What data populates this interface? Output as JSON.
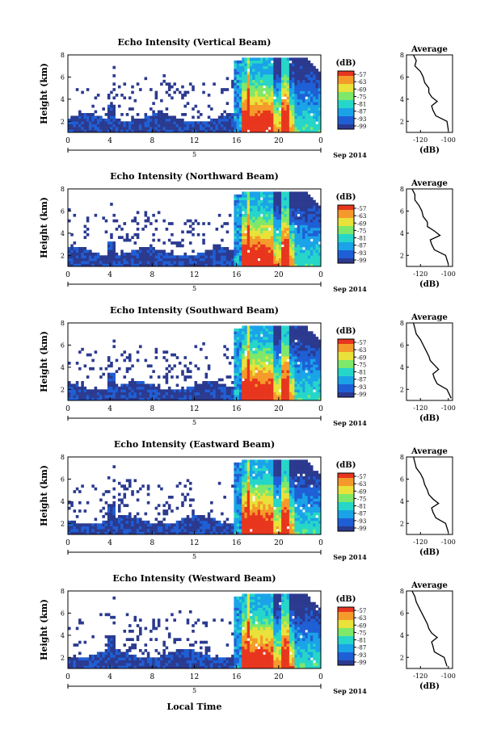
{
  "figure": {
    "xlabel": "Local Time",
    "date_label": "Sep 2014",
    "day_label": "5"
  },
  "colorbar": {
    "unit": "(dB)",
    "ticks": [
      "-57",
      "-63",
      "-69",
      "-75",
      "-81",
      "-87",
      "-93",
      "-99"
    ],
    "colors": [
      "#2b3a8f",
      "#1f5fd6",
      "#1aa3e8",
      "#26d6c8",
      "#7ee86a",
      "#e8e23a",
      "#f59a2a",
      "#e8361e"
    ]
  },
  "chart_data": [
    {
      "type": "heatmap",
      "title": "Echo Intensity (Vertical Beam)",
      "ylabel": "Height (km)",
      "x_ticks": [
        "0",
        "4",
        "8",
        "12",
        "16",
        "20",
        "0"
      ],
      "y_ticks": [
        "2",
        "4",
        "6",
        "8"
      ],
      "xlim": [
        0,
        24
      ],
      "ylim": [
        1,
        8
      ],
      "zlim": [
        -99,
        -57
      ],
      "profile": {
        "title": "Average",
        "xlabel": "(dB)",
        "x_ticks": [
          "-120",
          "-100"
        ],
        "xlim": [
          -130,
          -97
        ],
        "y_ticks": [
          "2",
          "4",
          "6",
          "8"
        ],
        "heights": [
          1.2,
          2.0,
          2.5,
          3.0,
          3.4,
          3.8,
          4.2,
          4.6,
          5.0,
          5.5,
          6.0,
          6.5,
          7.0,
          7.5,
          8.0
        ],
        "values": [
          -100,
          -101,
          -109,
          -111,
          -112,
          -108,
          -112,
          -114,
          -114,
          -117,
          -118,
          -120,
          -124,
          -123,
          -125
        ]
      }
    },
    {
      "type": "heatmap",
      "title": "Echo Intensity (Northward Beam)",
      "ylabel": "Height (km)",
      "x_ticks": [
        "0",
        "4",
        "8",
        "12",
        "16",
        "20",
        "0"
      ],
      "y_ticks": [
        "2",
        "4",
        "6",
        "8"
      ],
      "xlim": [
        0,
        24
      ],
      "ylim": [
        1,
        8
      ],
      "zlim": [
        -99,
        -57
      ],
      "profile": {
        "title": "Average",
        "xlabel": "(dB)",
        "x_ticks": [
          "-120",
          "-100"
        ],
        "xlim": [
          -130,
          -97
        ],
        "y_ticks": [
          "2",
          "4",
          "6",
          "8"
        ],
        "heights": [
          1.2,
          2.0,
          2.5,
          3.0,
          3.4,
          3.8,
          4.2,
          4.6,
          5.0,
          5.5,
          6.0,
          6.5,
          7.0,
          7.5,
          8.0
        ],
        "values": [
          -100,
          -102,
          -110,
          -112,
          -113,
          -106,
          -110,
          -115,
          -115,
          -118,
          -119,
          -121,
          -124,
          -124,
          -126
        ]
      }
    },
    {
      "type": "heatmap",
      "title": "Echo Intensity (Southward Beam)",
      "ylabel": "Height (km)",
      "x_ticks": [
        "0",
        "4",
        "8",
        "12",
        "16",
        "20",
        "0"
      ],
      "y_ticks": [
        "2",
        "4",
        "6",
        "8"
      ],
      "xlim": [
        0,
        24
      ],
      "ylim": [
        1,
        8
      ],
      "zlim": [
        -99,
        -57
      ],
      "profile": {
        "title": "Average",
        "xlabel": "(dB)",
        "x_ticks": [
          "-120",
          "-100"
        ],
        "xlim": [
          -130,
          -97
        ],
        "y_ticks": [
          "2",
          "4",
          "6",
          "8"
        ],
        "heights": [
          1.2,
          2.0,
          2.5,
          3.0,
          3.4,
          3.8,
          4.2,
          4.6,
          5.0,
          5.5,
          6.0,
          6.5,
          7.0,
          7.5,
          8.0
        ],
        "values": [
          -98,
          -101,
          -108,
          -110,
          -111,
          -107,
          -110,
          -113,
          -114,
          -116,
          -118,
          -120,
          -123,
          -124,
          -125
        ]
      }
    },
    {
      "type": "heatmap",
      "title": "Echo Intensity (Eastward Beam)",
      "ylabel": "Height (km)",
      "x_ticks": [
        "0",
        "4",
        "8",
        "12",
        "16",
        "20",
        "0"
      ],
      "y_ticks": [
        "2",
        "4",
        "6",
        "8"
      ],
      "xlim": [
        0,
        24
      ],
      "ylim": [
        1,
        8
      ],
      "zlim": [
        -99,
        -57
      ],
      "profile": {
        "title": "Average",
        "xlabel": "(dB)",
        "x_ticks": [
          "-120",
          "-100"
        ],
        "xlim": [
          -130,
          -97
        ],
        "y_ticks": [
          "2",
          "4",
          "6",
          "8"
        ],
        "heights": [
          1.2,
          2.0,
          2.5,
          3.0,
          3.4,
          3.8,
          4.2,
          4.6,
          5.0,
          5.5,
          6.0,
          6.5,
          7.0,
          7.5,
          8.0
        ],
        "values": [
          -100,
          -102,
          -109,
          -111,
          -112,
          -107,
          -111,
          -114,
          -115,
          -117,
          -118,
          -120,
          -123,
          -124,
          -125
        ]
      }
    },
    {
      "type": "heatmap",
      "title": "Echo Intensity (Westward Beam)",
      "ylabel": "Height (km)",
      "x_ticks": [
        "0",
        "4",
        "8",
        "12",
        "16",
        "20",
        "0"
      ],
      "y_ticks": [
        "2",
        "4",
        "6",
        "8"
      ],
      "xlim": [
        0,
        24
      ],
      "ylim": [
        1,
        8
      ],
      "zlim": [
        -99,
        -57
      ],
      "profile": {
        "title": "Average",
        "xlabel": "(dB)",
        "x_ticks": [
          "-120",
          "-100"
        ],
        "xlim": [
          -130,
          -97
        ],
        "y_ticks": [
          "2",
          "4",
          "6",
          "8"
        ],
        "heights": [
          1.2,
          2.0,
          2.5,
          3.0,
          3.4,
          3.8,
          4.2,
          4.6,
          5.0,
          5.5,
          6.0,
          6.5,
          7.0,
          7.5,
          8.0
        ],
        "values": [
          -101,
          -103,
          -110,
          -111,
          -112,
          -108,
          -112,
          -114,
          -115,
          -117,
          -119,
          -121,
          -123,
          -124,
          -126
        ]
      }
    }
  ]
}
